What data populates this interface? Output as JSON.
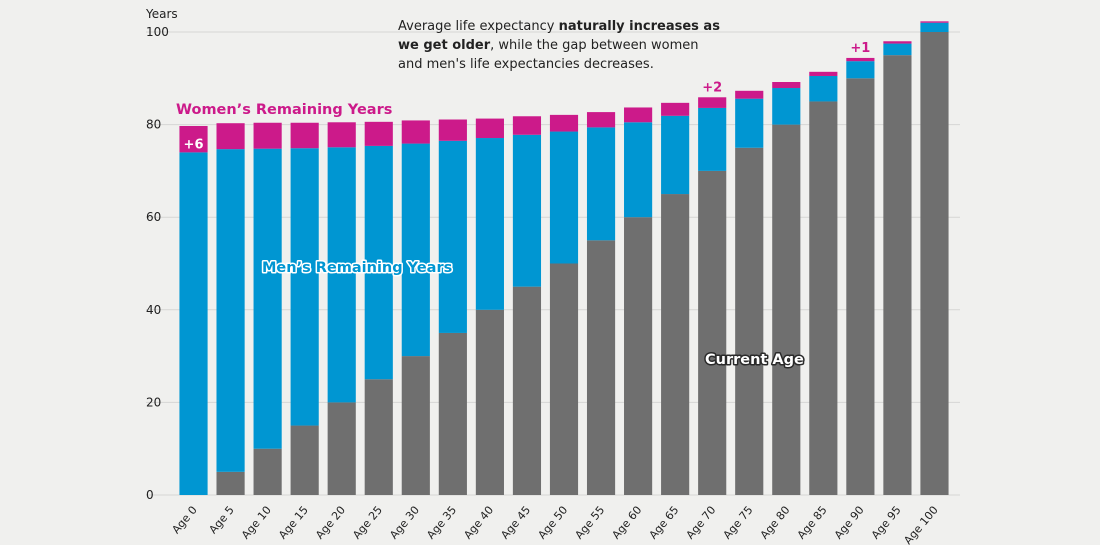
{
  "chart_data": {
    "type": "bar",
    "stacked": true,
    "categories": [
      "Age 0",
      "Age 5",
      "Age 10",
      "Age 15",
      "Age 20",
      "Age 25",
      "Age 30",
      "Age 35",
      "Age 40",
      "Age 45",
      "Age 50",
      "Age 55",
      "Age 60",
      "Age 65",
      "Age 70",
      "Age 75",
      "Age 80",
      "Age 85",
      "Age 90",
      "Age 95",
      "Age 100"
    ],
    "series": [
      {
        "name": "Current Age",
        "color": "#6f6f6f",
        "values": [
          0,
          5,
          10,
          15,
          20,
          25,
          30,
          35,
          40,
          45,
          50,
          55,
          60,
          65,
          70,
          75,
          80,
          85,
          90,
          95,
          100
        ]
      },
      {
        "name": "Men's Remaining Years",
        "color": "#0096d2",
        "values": [
          74,
          69.7,
          64.8,
          59.9,
          55.1,
          50.4,
          45.9,
          41.5,
          37.1,
          32.8,
          28.5,
          24.4,
          20.5,
          16.9,
          13.6,
          10.6,
          7.9,
          5.5,
          3.7,
          2.5,
          2.0
        ]
      },
      {
        "name": "Women's Remaining Years",
        "color": "#cc1a8a",
        "values": [
          5.7,
          5.6,
          5.6,
          5.5,
          5.4,
          5.2,
          5.0,
          4.6,
          4.2,
          4.0,
          3.6,
          3.3,
          3.2,
          2.8,
          2.3,
          1.7,
          1.3,
          0.9,
          0.7,
          0.5,
          0.3
        ]
      }
    ],
    "ylim": [
      0,
      103
    ],
    "yticks": [
      0,
      20,
      40,
      60,
      80,
      100
    ],
    "ylabel": "Years",
    "series_labels": {
      "women": "Women’s Remaining Years",
      "men": "Men’s Remaining Years",
      "current": "Current Age"
    },
    "gap_labels": [
      {
        "category": "Age 0",
        "text": "+6"
      },
      {
        "category": "Age 70",
        "text": "+2"
      },
      {
        "category": "Age 90",
        "text": "+1"
      }
    ],
    "annotation": {
      "line1_normal": "Average life expectancy ",
      "line1_bold": "naturally increases as",
      "line2_bold": "we get older",
      "line2_normal": ", while the gap between women",
      "line3_normal": "and men's life expectancies decreases."
    }
  }
}
